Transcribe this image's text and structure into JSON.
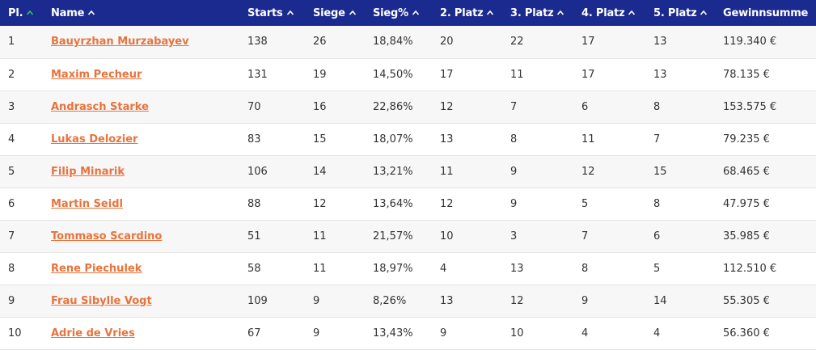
{
  "colors": {
    "header_bg": "#1a2a8e",
    "link": "#e8733c",
    "active_arrow": "#2fc46b",
    "arrow": "#ffffff"
  },
  "headers": [
    "Pl.",
    "Name",
    "Starts",
    "Siege",
    "Sieg%",
    "2. Platz",
    "3. Platz",
    "4. Platz",
    "5. Platz",
    "Gewinnsumme"
  ],
  "sort_icons": [
    "chevron-up-active-icon",
    "chevron-up-icon"
  ],
  "rows": [
    [
      "1",
      "Bauyrzhan Murzabayev",
      "138",
      "26",
      "18,84%",
      "20",
      "22",
      "17",
      "13",
      "119.340 €"
    ],
    [
      "2",
      "Maxim Pecheur",
      "131",
      "19",
      "14,50%",
      "17",
      "11",
      "17",
      "13",
      "78.135 €"
    ],
    [
      "3",
      "Andrasch Starke",
      "70",
      "16",
      "22,86%",
      "12",
      "7",
      "6",
      "8",
      "153.575 €"
    ],
    [
      "4",
      "Lukas Delozier",
      "83",
      "15",
      "18,07%",
      "13",
      "8",
      "11",
      "7",
      "79.235 €"
    ],
    [
      "5",
      "Filip Minarik",
      "106",
      "14",
      "13,21%",
      "11",
      "9",
      "12",
      "15",
      "68.465 €"
    ],
    [
      "6",
      "Martin Seidl",
      "88",
      "12",
      "13,64%",
      "12",
      "9",
      "5",
      "8",
      "47.975 €"
    ],
    [
      "7",
      "Tommaso Scardino",
      "51",
      "11",
      "21,57%",
      "10",
      "3",
      "7",
      "6",
      "35.985 €"
    ],
    [
      "8",
      "Rene Piechulek",
      "58",
      "11",
      "18,97%",
      "4",
      "13",
      "8",
      "5",
      "112.510 €"
    ],
    [
      "9",
      "Frau Sibylle Vogt",
      "109",
      "9",
      "8,26%",
      "13",
      "12",
      "9",
      "14",
      "55.305 €"
    ],
    [
      "10",
      "Adrie de Vries",
      "67",
      "9",
      "13,43%",
      "9",
      "10",
      "4",
      "4",
      "56.360 €"
    ]
  ]
}
